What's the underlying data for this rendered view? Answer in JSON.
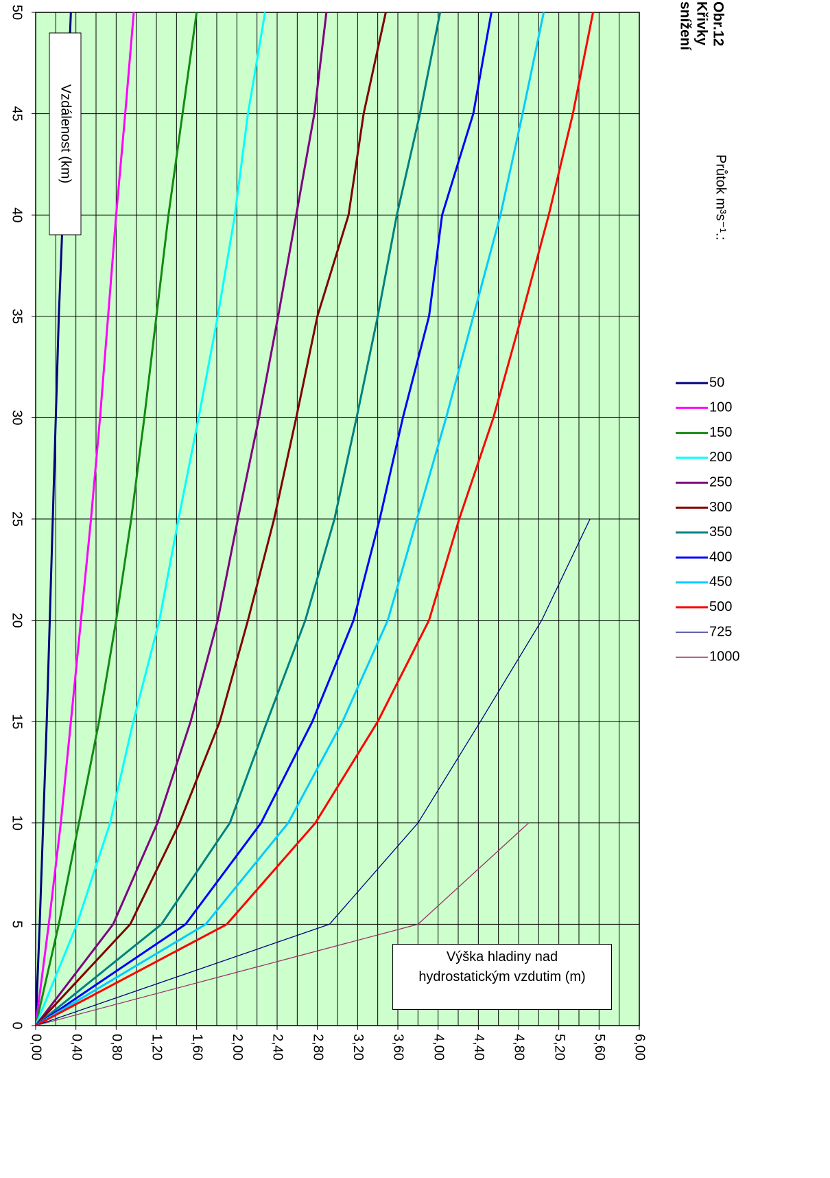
{
  "chart_data": {
    "type": "line",
    "title_lines": [
      "Obr.12",
      "Křivky",
      "snížení"
    ],
    "legend_title": "Průtok m³s⁻¹.:",
    "x_label": "Vzdálenost (km)",
    "y_label": "Výška hladiny nad hydrostatickým vzdutim (m)",
    "x": [
      0,
      5,
      10,
      15,
      20,
      25,
      30,
      35,
      40,
      45,
      50
    ],
    "xlim": [
      0,
      50
    ],
    "xticks": [
      0,
      5,
      10,
      15,
      20,
      25,
      30,
      35,
      40,
      45,
      50
    ],
    "ylim": [
      0,
      6
    ],
    "yticks": [
      {
        "value": 0,
        "label": "0,00"
      },
      {
        "value": 0.4,
        "label": "0,40"
      },
      {
        "value": 0.8,
        "label": "0,80"
      },
      {
        "value": 1.2,
        "label": "1,20"
      },
      {
        "value": 1.6,
        "label": "1,60"
      },
      {
        "value": 2.0,
        "label": "2,00"
      },
      {
        "value": 2.4,
        "label": "2,40"
      },
      {
        "value": 2.8,
        "label": "2,80"
      },
      {
        "value": 3.2,
        "label": "3,20"
      },
      {
        "value": 3.6,
        "label": "3,60"
      },
      {
        "value": 4.0,
        "label": "4,00"
      },
      {
        "value": 4.4,
        "label": "4,40"
      },
      {
        "value": 4.8,
        "label": "4,80"
      },
      {
        "value": 5.2,
        "label": "5,20"
      },
      {
        "value": 5.6,
        "label": "5,60"
      },
      {
        "value": 6.0,
        "label": "6,00"
      }
    ],
    "y_minor_grid": [
      0.2,
      0.6,
      1.0,
      1.4,
      1.8,
      2.2,
      2.6,
      3.0,
      3.4,
      3.8,
      4.2,
      4.6,
      5.0,
      5.4,
      5.8
    ],
    "grid": true,
    "background": "#ccffcc",
    "series": [
      {
        "name": "50",
        "color": "#000080",
        "width": 3,
        "values": [
          0,
          0.04,
          0.075,
          0.11,
          0.14,
          0.17,
          0.2,
          0.23,
          0.27,
          0.31,
          0.35
        ]
      },
      {
        "name": "100",
        "color": "#ff00ff",
        "width": 3,
        "values": [
          0,
          0.13,
          0.25,
          0.35,
          0.45,
          0.55,
          0.64,
          0.72,
          0.8,
          0.89,
          0.975
        ]
      },
      {
        "name": "150",
        "color": "#138a13",
        "width": 3,
        "values": [
          0,
          0.23,
          0.43,
          0.63,
          0.8,
          0.95,
          1.08,
          1.2,
          1.32,
          1.46,
          1.6
        ]
      },
      {
        "name": "200",
        "color": "#00ffff",
        "width": 3,
        "values": [
          0,
          0.41,
          0.74,
          0.97,
          1.23,
          1.42,
          1.62,
          1.81,
          1.98,
          2.11,
          2.28
        ]
      },
      {
        "name": "250",
        "color": "#800080",
        "width": 3,
        "values": [
          0,
          0.77,
          1.21,
          1.54,
          1.81,
          2.01,
          2.22,
          2.41,
          2.59,
          2.77,
          2.89
        ]
      },
      {
        "name": "300",
        "color": "#800000",
        "width": 3,
        "values": [
          0,
          0.94,
          1.43,
          1.83,
          2.11,
          2.37,
          2.59,
          2.8,
          3.11,
          3.26,
          3.48
        ]
      },
      {
        "name": "350",
        "color": "#008080",
        "width": 3,
        "values": [
          0,
          1.25,
          1.93,
          2.3,
          2.68,
          2.97,
          3.19,
          3.4,
          3.59,
          3.82,
          4.02
        ]
      },
      {
        "name": "400",
        "color": "#0000ff",
        "width": 3,
        "values": [
          0,
          1.49,
          2.24,
          2.75,
          3.16,
          3.42,
          3.65,
          3.91,
          4.04,
          4.35,
          4.53
        ]
      },
      {
        "name": "450",
        "color": "#00ccff",
        "width": 3,
        "values": [
          0,
          1.69,
          2.51,
          3.05,
          3.5,
          3.79,
          4.08,
          4.35,
          4.62,
          4.84,
          5.05
        ]
      },
      {
        "name": "500",
        "color": "#ff0000",
        "width": 3,
        "values": [
          0,
          1.9,
          2.78,
          3.4,
          3.91,
          4.21,
          4.55,
          4.83,
          5.1,
          5.34,
          5.54
        ]
      },
      {
        "name": "725",
        "color": "#000080",
        "width": 1.3,
        "values": [
          0,
          2.92,
          3.8,
          4.42,
          5.03,
          5.51,
          null,
          null,
          null,
          null,
          null
        ]
      },
      {
        "name": "1000",
        "color": "#993366",
        "width": 1.3,
        "values": [
          0,
          3.8,
          4.9,
          null,
          null,
          null,
          null,
          null,
          null,
          null,
          null
        ]
      }
    ]
  }
}
